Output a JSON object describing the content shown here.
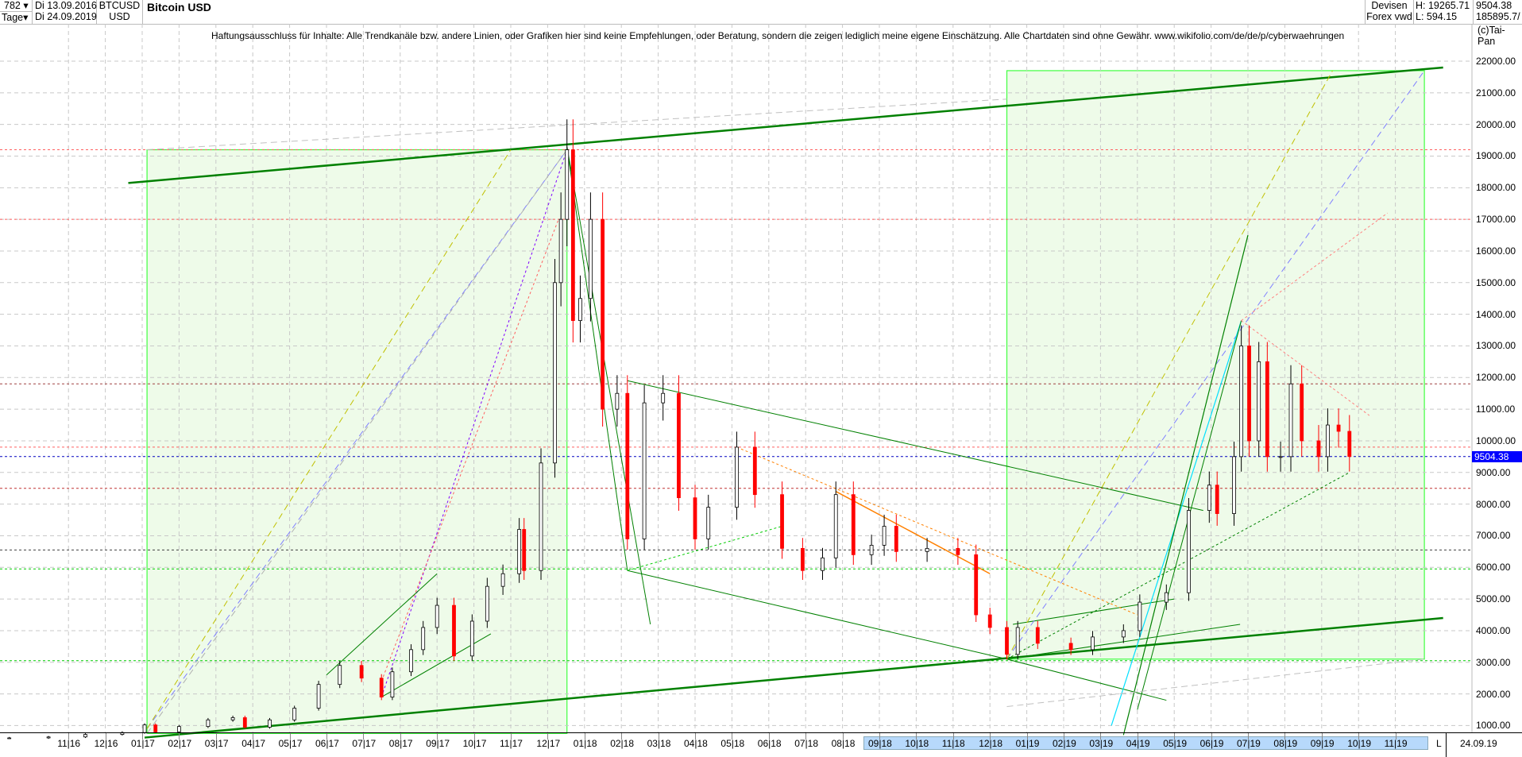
{
  "header": {
    "bars": "782",
    "period": "Tage",
    "date_from": "Di 13.09.2016",
    "date_to": "Di 24.09.2019",
    "symbol": "BTCUSD",
    "currency": "USD",
    "title": "Bitcoin USD",
    "market": "Devisen",
    "source": "Forex vwd",
    "high": "H: 19265.71",
    "low": "L: 594.15",
    "last": "9504.38",
    "volume": "185895.7/"
  },
  "disclaimer": "Haftungsausschluss für Inhalte: Alle Trendkanäle bzw. andere Linien, oder Grafiken hier sind keine Empfehlungen, oder Beratung, sondern die zeigen lediglich meine eigene Einschätzung. Alle Chartdaten sind ohne Gewähr.  www.wikifolio.com/de/de/p/cyberwaehrungen",
  "copyright": "(c)Tai-Pan",
  "chart_data": {
    "type": "candlestick",
    "title": "Bitcoin USD",
    "ylim": [
      1000,
      22000
    ],
    "grid": true,
    "y_ticks": [
      "1000.00",
      "2000.00",
      "3000.00",
      "4000.00",
      "5000.00",
      "6000.00",
      "7000.00",
      "8000.00",
      "9000.00",
      "10000.00",
      "11000.00",
      "12000.00",
      "13000.00",
      "14000.00",
      "15000.00",
      "16000.00",
      "17000.00",
      "18000.00",
      "19000.00",
      "20000.00",
      "21000.00",
      "22000.00"
    ],
    "x_ticks": [
      "11|16",
      "12|16",
      "01|17",
      "02|17",
      "03|17",
      "04|17",
      "05|17",
      "06|17",
      "07|17",
      "08|17",
      "09|17",
      "10|17",
      "11|17",
      "12|17",
      "01|18",
      "02|18",
      "03|18",
      "04|18",
      "05|18",
      "06|18",
      "07|18",
      "08|18",
      "09|18",
      "10|18",
      "11|18",
      "12|18",
      "01|19",
      "02|19",
      "03|19",
      "04|19",
      "05|19",
      "06|19",
      "07|19",
      "08|19",
      "09|19",
      "10|19",
      "11|19"
    ],
    "x_end_label": "24.09.19",
    "x_scroll_marker": "L",
    "last_price": "9504.38",
    "closes": [
      [
        "2016-09-13",
        610
      ],
      [
        "2016-10-15",
        640
      ],
      [
        "2016-11-15",
        720
      ],
      [
        "2016-12-15",
        780
      ],
      [
        "2017-01-03",
        1020
      ],
      [
        "2017-01-12",
        800
      ],
      [
        "2017-02-01",
        970
      ],
      [
        "2017-02-25",
        1180
      ],
      [
        "2017-03-15",
        1250
      ],
      [
        "2017-03-25",
        950
      ],
      [
        "2017-04-15",
        1180
      ],
      [
        "2017-05-05",
        1550
      ],
      [
        "2017-05-25",
        2300
      ],
      [
        "2017-06-12",
        2900
      ],
      [
        "2017-06-30",
        2500
      ],
      [
        "2017-07-16",
        1900
      ],
      [
        "2017-07-25",
        2700
      ],
      [
        "2017-08-10",
        3400
      ],
      [
        "2017-08-20",
        4100
      ],
      [
        "2017-09-01",
        4800
      ],
      [
        "2017-09-15",
        3200
      ],
      [
        "2017-09-30",
        4300
      ],
      [
        "2017-10-12",
        5400
      ],
      [
        "2017-10-25",
        5800
      ],
      [
        "2017-11-08",
        7200
      ],
      [
        "2017-11-12",
        5900
      ],
      [
        "2017-11-26",
        9300
      ],
      [
        "2017-12-07",
        15000
      ],
      [
        "2017-12-12",
        17000
      ],
      [
        "2017-12-17",
        19200
      ],
      [
        "2017-12-22",
        13800
      ],
      [
        "2017-12-28",
        14500
      ],
      [
        "2018-01-06",
        17000
      ],
      [
        "2018-01-16",
        11000
      ],
      [
        "2018-01-28",
        11500
      ],
      [
        "2018-02-06",
        6900
      ],
      [
        "2018-02-20",
        11200
      ],
      [
        "2018-03-05",
        11500
      ],
      [
        "2018-03-18",
        8200
      ],
      [
        "2018-04-01",
        6900
      ],
      [
        "2018-04-12",
        7900
      ],
      [
        "2018-05-05",
        9800
      ],
      [
        "2018-05-20",
        8300
      ],
      [
        "2018-06-12",
        6600
      ],
      [
        "2018-06-29",
        5900
      ],
      [
        "2018-07-15",
        6300
      ],
      [
        "2018-07-26",
        8300
      ],
      [
        "2018-08-10",
        6400
      ],
      [
        "2018-08-25",
        6700
      ],
      [
        "2018-09-05",
        7300
      ],
      [
        "2018-09-15",
        6500
      ],
      [
        "2018-10-10",
        6600
      ],
      [
        "2018-11-05",
        6400
      ],
      [
        "2018-11-20",
        4500
      ],
      [
        "2018-12-01",
        4100
      ],
      [
        "2018-12-15",
        3250
      ],
      [
        "2018-12-24",
        4100
      ],
      [
        "2019-01-10",
        3600
      ],
      [
        "2019-02-07",
        3400
      ],
      [
        "2019-02-25",
        3800
      ],
      [
        "2019-03-20",
        4000
      ],
      [
        "2019-04-03",
        4900
      ],
      [
        "2019-04-25",
        5200
      ],
      [
        "2019-05-13",
        7800
      ],
      [
        "2019-05-30",
        8600
      ],
      [
        "2019-06-06",
        7700
      ],
      [
        "2019-06-20",
        9500
      ],
      [
        "2019-06-26",
        13000
      ],
      [
        "2019-07-02",
        10000
      ],
      [
        "2019-07-10",
        12500
      ],
      [
        "2019-07-17",
        9500
      ],
      [
        "2019-07-28",
        9500
      ],
      [
        "2019-08-06",
        11800
      ],
      [
        "2019-08-15",
        10000
      ],
      [
        "2019-08-29",
        9500
      ],
      [
        "2019-09-06",
        10500
      ],
      [
        "2019-09-15",
        10300
      ],
      [
        "2019-09-24",
        9504.38
      ]
    ],
    "horizontal_lines": [
      {
        "price": 19200,
        "color": "#ff6060"
      },
      {
        "price": 17000,
        "color": "#ff6060"
      },
      {
        "price": 11800,
        "color": "#a04040"
      },
      {
        "price": 9800,
        "color": "#ff6060"
      },
      {
        "price": 8500,
        "color": "#c03030"
      },
      {
        "price": 6550,
        "color": "#404040"
      },
      {
        "price": 5950,
        "color": "#00cc00"
      },
      {
        "price": 3050,
        "color": "#00cc00"
      },
      {
        "price": 9504.38,
        "color": "#0000c0"
      }
    ],
    "boxes": [
      {
        "from": "2017-01-05",
        "to": "2017-12-17",
        "low": 750,
        "high": 19200
      },
      {
        "from": "2018-12-15",
        "to": "2019-11-25",
        "low": 3100,
        "high": 21700
      }
    ],
    "trendlines": [
      {
        "a": [
          "2016-12-20",
          18150
        ],
        "b": [
          "2019-12-10",
          21800
        ],
        "color": "#008000",
        "w": 2.5
      },
      {
        "a": [
          "2017-01-03",
          620
        ],
        "b": [
          "2019-12-10",
          4400
        ],
        "color": "#008000",
        "w": 2.5
      },
      {
        "a": [
          "2017-12-17",
          19300
        ],
        "b": [
          "2018-02-06",
          5900
        ],
        "color": "#008000",
        "w": 1
      },
      {
        "a": [
          "2017-12-17",
          19300
        ],
        "b": [
          "2018-02-25",
          4200
        ],
        "color": "#008000",
        "w": 1
      },
      {
        "a": [
          "2018-02-06",
          11900
        ],
        "b": [
          "2019-05-25",
          7800
        ],
        "color": "#008000",
        "w": 1
      },
      {
        "a": [
          "2018-02-06",
          5900
        ],
        "b": [
          "2018-12-15",
          3100
        ],
        "color": "#008000",
        "w": 1
      },
      {
        "a": [
          "2018-12-15",
          3100
        ],
        "b": [
          "2019-04-25",
          1800
        ],
        "color": "#008000",
        "w": 1
      },
      {
        "a": [
          "2018-12-15",
          3100
        ],
        "b": [
          "2019-06-25",
          4200
        ],
        "color": "#008000",
        "w": 1
      },
      {
        "a": [
          "2018-12-20",
          4200
        ],
        "b": [
          "2019-05-01",
          5000
        ],
        "color": "#008000",
        "w": 1
      },
      {
        "a": [
          "2018-07-26",
          8400
        ],
        "b": [
          "2018-12-01",
          5800
        ],
        "color": "#ff8000",
        "w": 1.5
      },
      {
        "a": [
          "2018-05-05",
          9800
        ],
        "b": [
          "2019-04-01",
          4500
        ],
        "color": "#ff8000",
        "w": 1,
        "dash": "3,3"
      },
      {
        "a": [
          "2017-01-05",
          900
        ],
        "b": [
          "2017-12-17",
          19200
        ],
        "color": "#8080ff",
        "w": 1,
        "dash": "8,5"
      },
      {
        "a": [
          "2017-01-05",
          900
        ],
        "b": [
          "2017-11-01",
          19200
        ],
        "color": "#c0c000",
        "w": 1,
        "dash": "8,5"
      },
      {
        "a": [
          "2018-12-15",
          3100
        ],
        "b": [
          "2019-11-25",
          21700
        ],
        "color": "#8080ff",
        "w": 1,
        "dash": "8,5"
      },
      {
        "a": [
          "2018-12-15",
          3100
        ],
        "b": [
          "2019-09-10",
          21700
        ],
        "color": "#c0c000",
        "w": 1,
        "dash": "8,5"
      },
      {
        "a": [
          "2017-07-16",
          1900
        ],
        "b": [
          "2017-12-17",
          19200
        ],
        "color": "#8000ff",
        "w": 1,
        "dash": "3,3"
      },
      {
        "a": [
          "2017-07-16",
          2400
        ],
        "b": [
          "2017-12-10",
          17000
        ],
        "color": "#ff6060",
        "w": 1,
        "dash": "3,3"
      },
      {
        "a": [
          "2019-03-10",
          1000
        ],
        "b": [
          "2019-06-26",
          13800
        ],
        "color": "#00e0ff",
        "w": 1.2
      },
      {
        "a": [
          "2019-03-20",
          700
        ],
        "b": [
          "2019-07-01",
          16500
        ],
        "color": "#008000",
        "w": 1.2
      },
      {
        "a": [
          "2019-04-01",
          1500
        ],
        "b": [
          "2019-06-26",
          13800
        ],
        "color": "#008000",
        "w": 1
      },
      {
        "a": [
          "2019-06-26",
          13800
        ],
        "b": [
          "2019-10-25",
          17200
        ],
        "color": "#ff8080",
        "w": 1,
        "dash": "3,3"
      },
      {
        "a": [
          "2019-06-26",
          13800
        ],
        "b": [
          "2019-10-10",
          10800
        ],
        "color": "#ff8080",
        "w": 1,
        "dash": "3,3"
      },
      {
        "a": [
          "2018-12-15",
          3100
        ],
        "b": [
          "2019-09-24",
          9000
        ],
        "color": "#008000",
        "w": 1,
        "dash": "3,3"
      },
      {
        "a": [
          "2017-01-05",
          750
        ],
        "b": [
          "2017-12-17",
          19200
        ],
        "color": "#b0b0b0",
        "w": 1,
        "dash": "8,5"
      },
      {
        "a": [
          "2017-01-05",
          19200
        ],
        "b": [
          "2018-12-15",
          20800
        ],
        "color": "#c0c0c0",
        "w": 1,
        "dash": "8,5"
      },
      {
        "a": [
          "2018-12-15",
          1600
        ],
        "b": [
          "2019-11-25",
          3100
        ],
        "color": "#c0c0c0",
        "w": 1,
        "dash": "8,5"
      },
      {
        "a": [
          "2017-06-01",
          2600
        ],
        "b": [
          "2017-09-01",
          5800
        ],
        "color": "#008000",
        "w": 1
      },
      {
        "a": [
          "2017-07-16",
          1900
        ],
        "b": [
          "2017-10-15",
          3900
        ],
        "color": "#008000",
        "w": 1
      },
      {
        "a": [
          "2018-02-06",
          5900
        ],
        "b": [
          "2018-06-12",
          7300
        ],
        "color": "#00cc00",
        "w": 1,
        "dash": "3,3"
      }
    ]
  }
}
